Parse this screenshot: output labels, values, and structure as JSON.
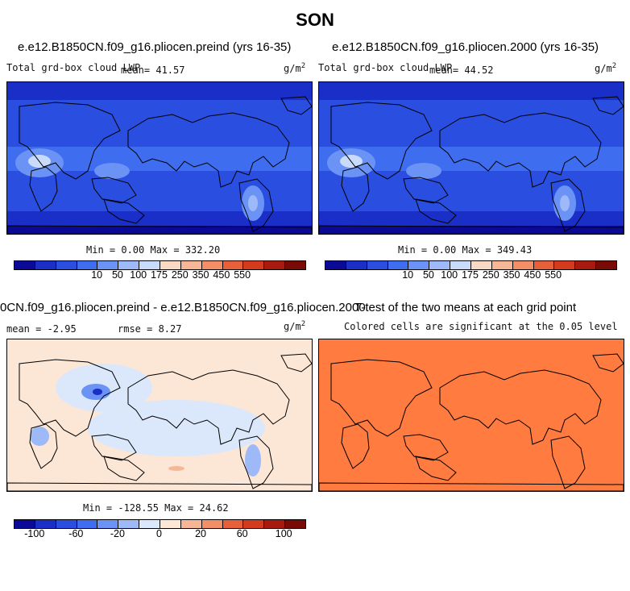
{
  "figure": {
    "title": "SON"
  },
  "chart_data": [
    {
      "type": "heatmap",
      "title": "e.e12.B1850CN.f09_g16.pliocen.preind (yrs 16-35)",
      "left_label": "Total grd-box cloud LWP",
      "stat": "mean=  41.57",
      "units": "g/m",
      "units_sup": "2",
      "minmax": "Min =   0.00 Max = 332.20",
      "mean": 41.57,
      "min": 0.0,
      "max": 332.2,
      "colorbar": {
        "colors": [
          "#0a0a96",
          "#1a2fc8",
          "#2a4ee0",
          "#3f6df0",
          "#6b93f5",
          "#9db9f8",
          "#c9dbfb",
          "#f9d8c4",
          "#f7b696",
          "#f28f66",
          "#e8603a",
          "#d43a1e",
          "#a81a0e",
          "#7a0a05"
        ],
        "tick_labels": [
          "10",
          "50",
          "100",
          "175",
          "250",
          "350",
          "450",
          "550"
        ]
      }
    },
    {
      "type": "heatmap",
      "title": "e.e12.B1850CN.f09_g16.pliocen.2000 (yrs 16-35)",
      "left_label": "Total grd-box cloud LWP",
      "stat": "mean=  44.52",
      "units": "g/m",
      "units_sup": "2",
      "minmax": "Min =   0.00 Max = 349.43",
      "mean": 44.52,
      "min": 0.0,
      "max": 349.43,
      "colorbar": {
        "colors": [
          "#0a0a96",
          "#1a2fc8",
          "#2a4ee0",
          "#3f6df0",
          "#6b93f5",
          "#9db9f8",
          "#c9dbfb",
          "#f9d8c4",
          "#f7b696",
          "#f28f66",
          "#e8603a",
          "#d43a1e",
          "#a81a0e",
          "#7a0a05"
        ],
        "tick_labels": [
          "10",
          "50",
          "100",
          "175",
          "250",
          "350",
          "450",
          "550"
        ]
      }
    },
    {
      "type": "heatmap",
      "title": "0CN.f09_g16.pliocen.preind - e.e12.B1850CN.f09_g16.pliocen.2000",
      "stat_mean": "mean =  -2.95",
      "stat_rmse": "rmse =   8.27",
      "units": "g/m",
      "units_sup": "2",
      "minmax": "Min = -128.55 Max =  24.62",
      "mean": -2.95,
      "rmse": 8.27,
      "min": -128.55,
      "max": 24.62,
      "colorbar": {
        "colors": [
          "#0a0a96",
          "#1a2fc8",
          "#2a4ee0",
          "#3f6df0",
          "#6b93f5",
          "#9db9f8",
          "#dbe8fb",
          "#fce6d6",
          "#f7b696",
          "#f28f66",
          "#e8603a",
          "#d43a1e",
          "#a81a0e",
          "#7a0a05"
        ],
        "tick_labels": [
          "-100",
          "-60",
          "-20",
          "0",
          "20",
          "60",
          "100"
        ]
      }
    },
    {
      "type": "heatmap",
      "title": "T-test of the two means at each grid point",
      "subtitle": "Colored cells are significant at the 0.05 level",
      "fill": "#ff7b3f"
    }
  ]
}
